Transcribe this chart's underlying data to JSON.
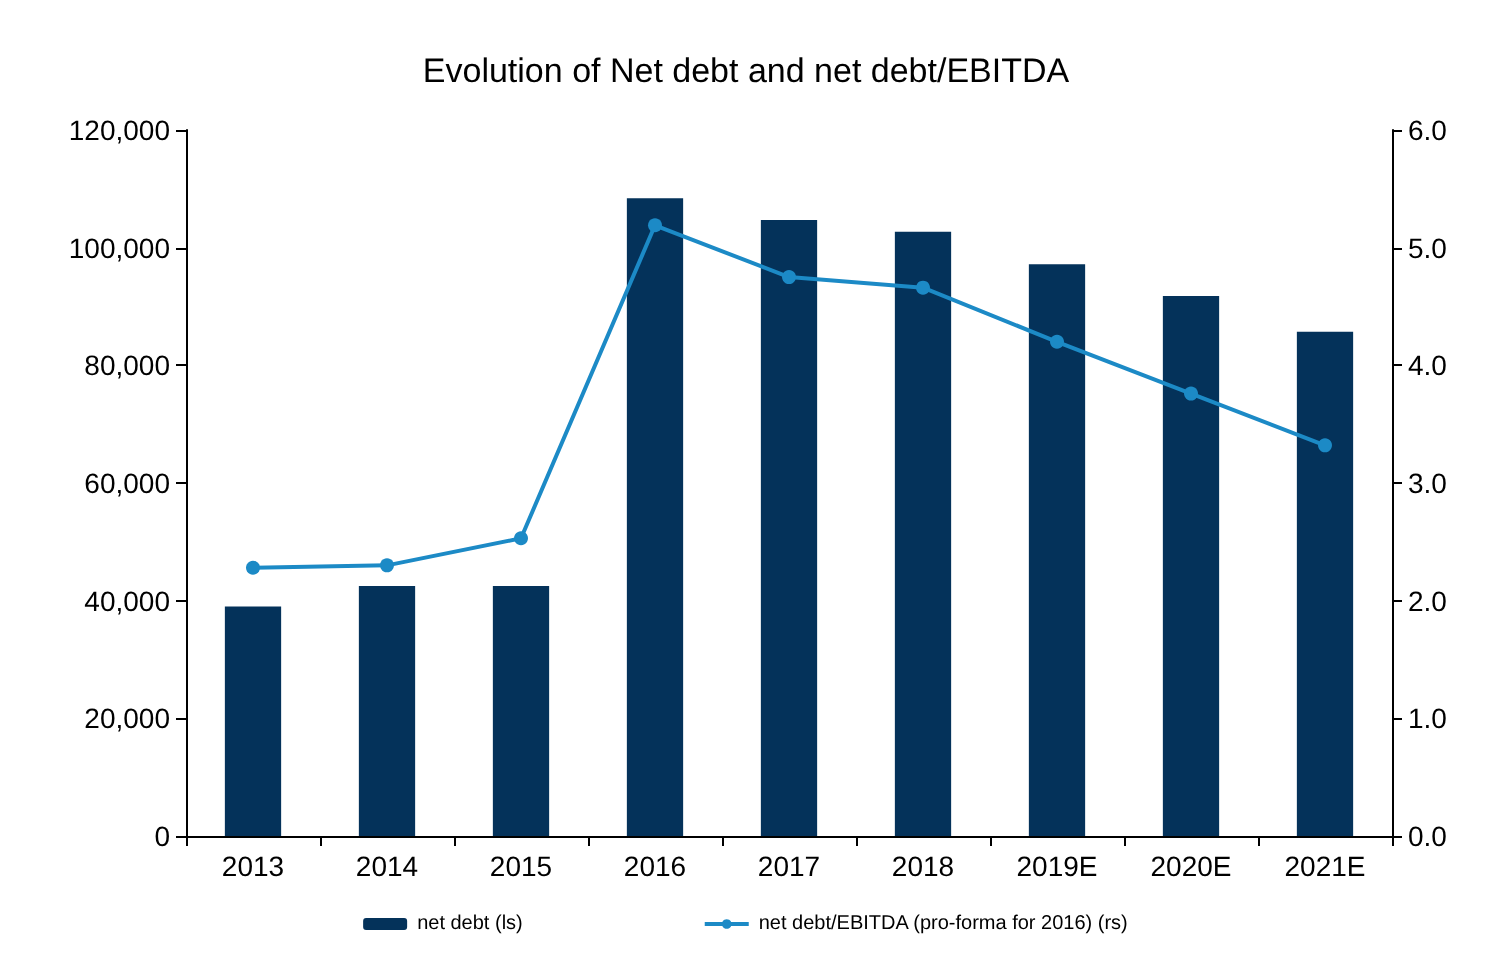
{
  "chart_data": {
    "type": "bar",
    "title": "Evolution of Net debt and net debt/EBITDA",
    "categories": [
      "2013",
      "2014",
      "2015",
      "2016",
      "2017",
      "2018",
      "2019E",
      "2020E",
      "2021E"
    ],
    "series": [
      {
        "name": "net debt (ls)",
        "color": "#04325a",
        "values": [
          39000,
          42500,
          42500,
          108400,
          104700,
          102700,
          97200,
          91800,
          85700
        ]
      },
      {
        "name": "net debt/EBITDA (pro-forma for 2016) (rs)",
        "type": "line",
        "axis": "y2",
        "color": "#1c8ac6",
        "values": [
          2.28,
          2.3,
          2.53,
          5.19,
          4.75,
          4.66,
          4.2,
          3.76,
          3.32
        ]
      }
    ],
    "ylim": [
      0,
      120000
    ],
    "yticks": [
      0,
      {
        "value": 20000,
        "label": "20,000"
      },
      {
        "value": 40000,
        "label": "40,000"
      },
      {
        "value": 60000,
        "label": "60,000"
      },
      {
        "value": 80000,
        "label": "80,000"
      },
      {
        "value": 100000,
        "label": "100,000"
      },
      {
        "value": 120000,
        "label": "120,000"
      }
    ],
    "y2lim": [
      0,
      6
    ],
    "y2ticks": [
      {
        "value": 0,
        "label": "0.0"
      },
      {
        "value": 1,
        "label": "1.0"
      },
      {
        "value": 2,
        "label": "2.0"
      },
      {
        "value": 3,
        "label": "3.0"
      },
      {
        "value": 4,
        "label": "4.0"
      },
      {
        "value": 5,
        "label": "5.0"
      },
      {
        "value": 6,
        "label": "6.0"
      }
    ],
    "grid": false,
    "legend": "bottom",
    "marker": "circle"
  }
}
